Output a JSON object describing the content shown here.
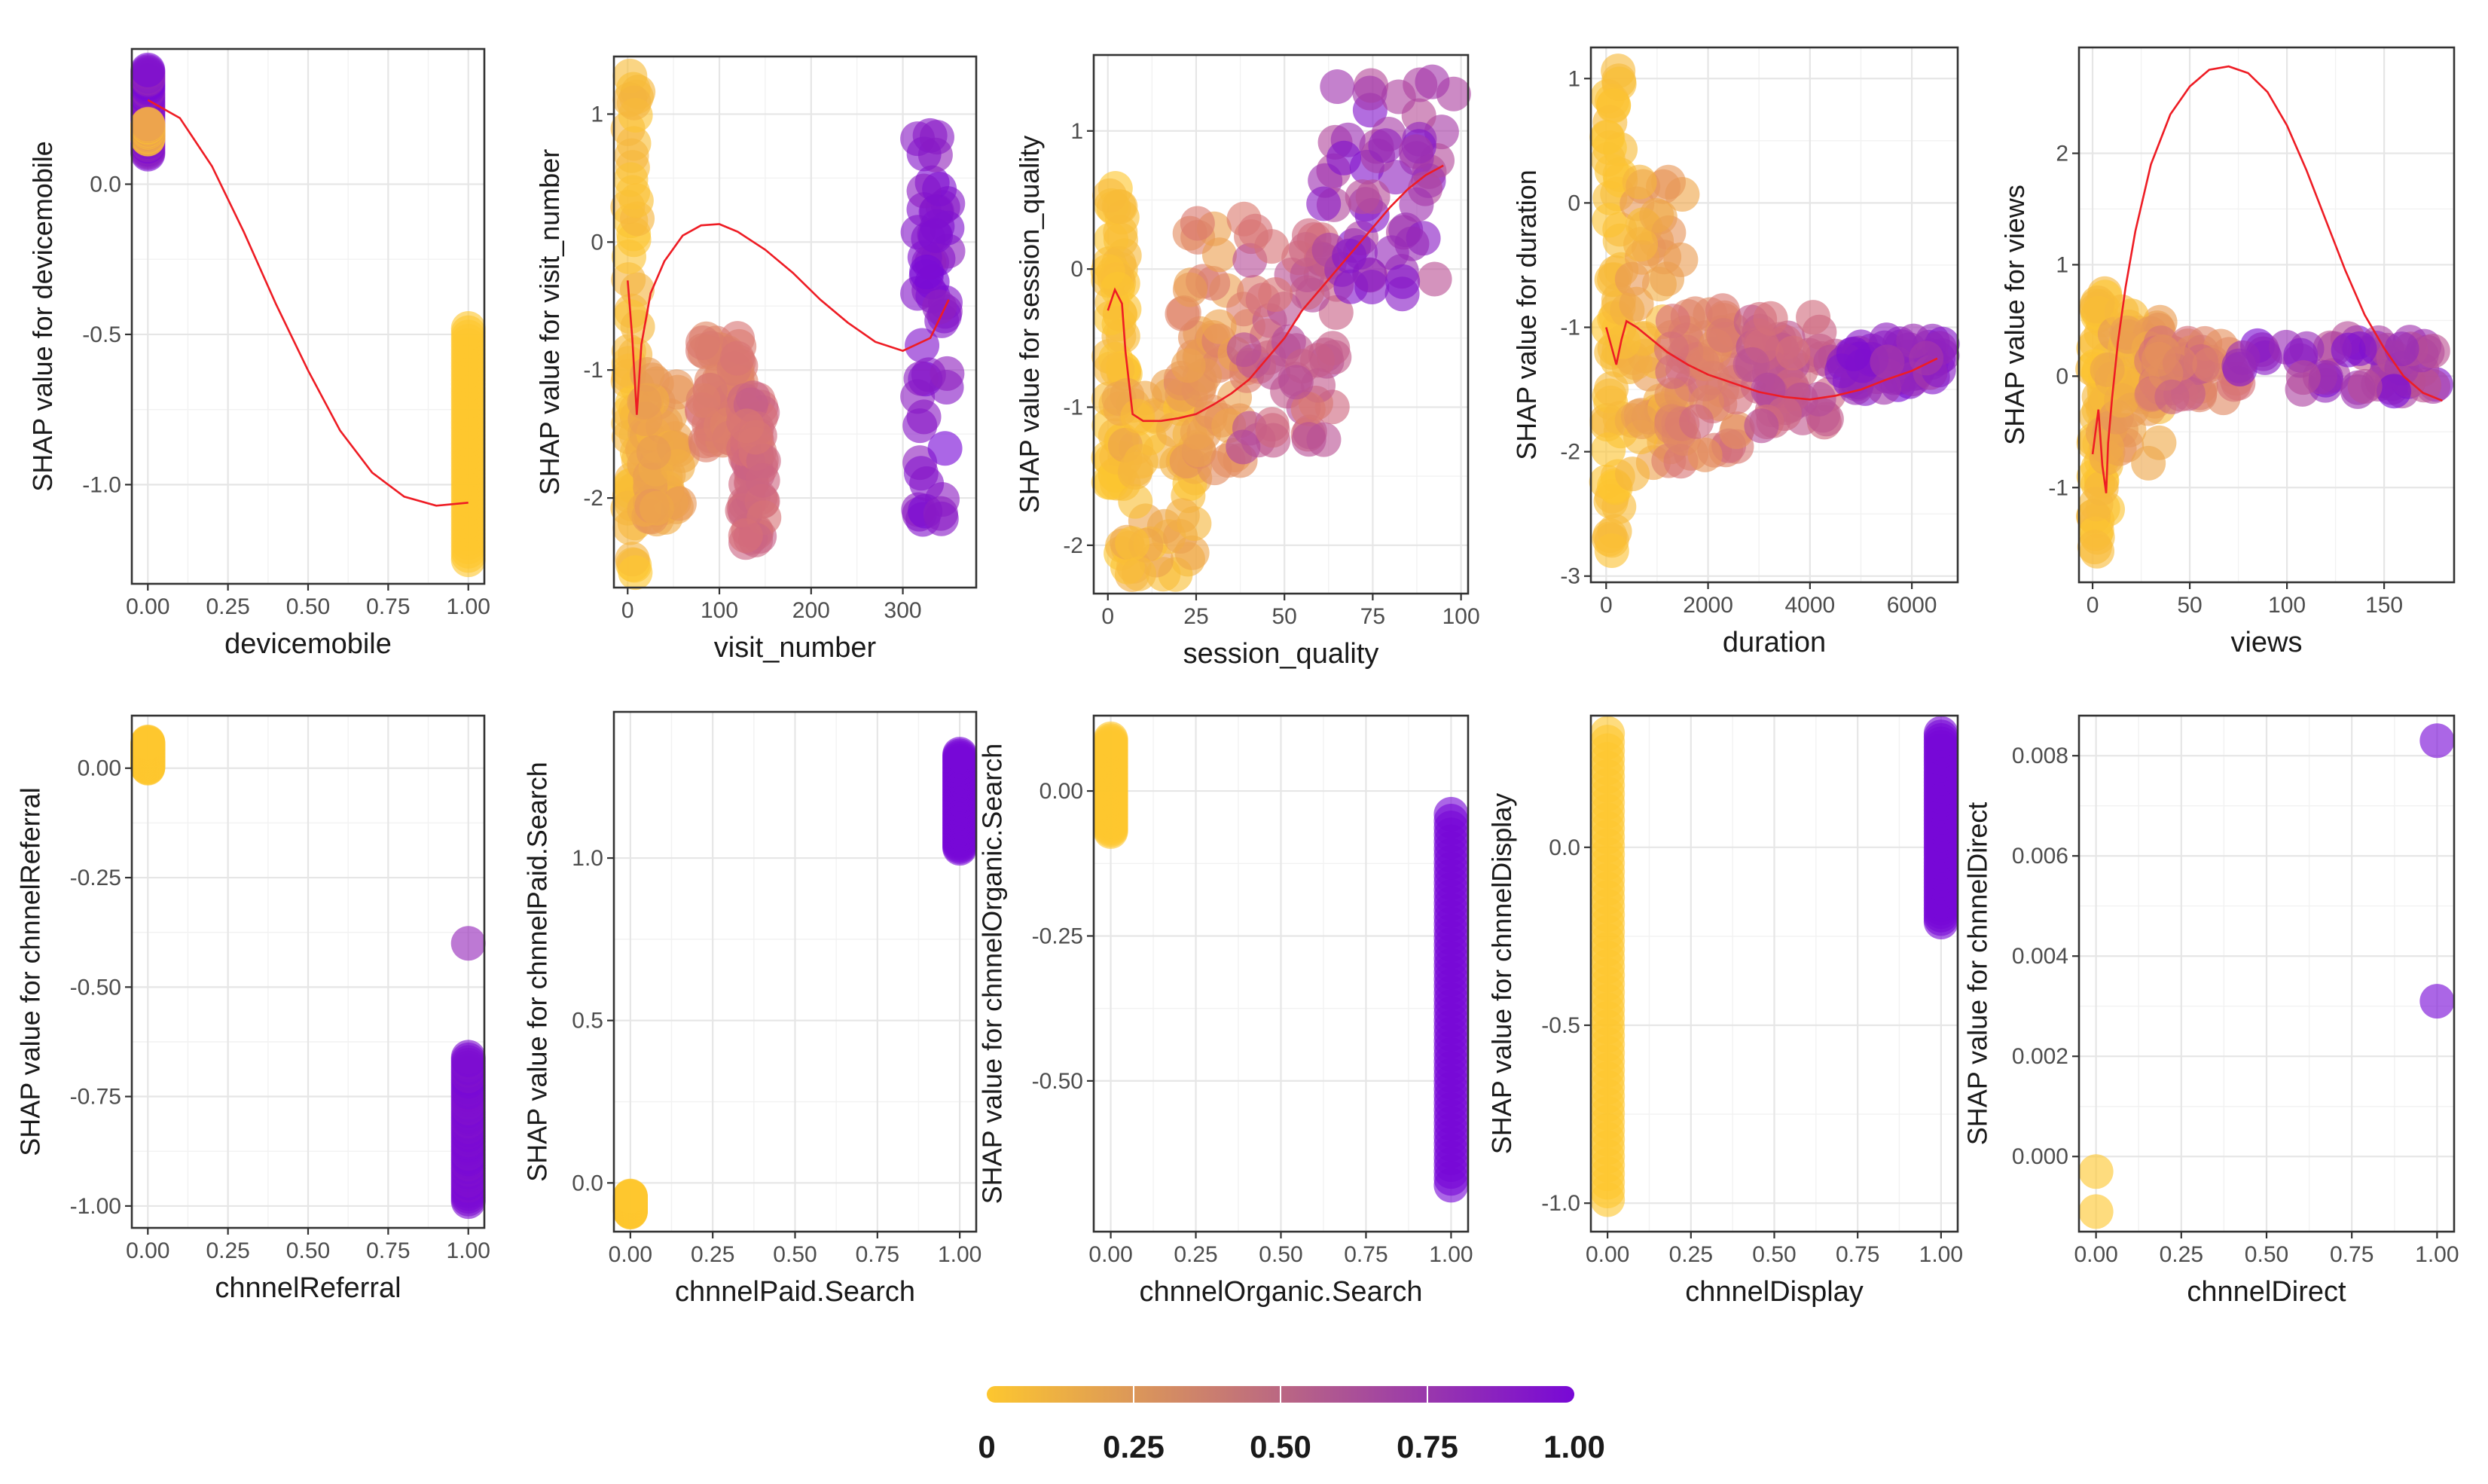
{
  "chart_data": [
    {
      "type": "scatter",
      "id": "devicemobile",
      "xlabel": "devicemobile",
      "ylabel": "SHAP value for devicemobile",
      "xlim": [
        -0.05,
        1.05
      ],
      "ylim": [
        -1.33,
        0.45
      ],
      "xticks": [
        0,
        0.25,
        0.5,
        0.75,
        1
      ],
      "xticklabels": [
        "0.00",
        "0.25",
        "0.50",
        "0.75",
        "1.00"
      ],
      "yticks": [
        -1,
        -0.5,
        0
      ],
      "yticklabels": [
        "-1.0",
        "-0.5",
        "0.0"
      ],
      "point_groups": [
        {
          "x": [
            0,
            0
          ],
          "y": [
            0.1,
            0.38
          ],
          "c": [
            0.85,
            1.0
          ]
        },
        {
          "x": [
            0,
            0
          ],
          "y": [
            0.15,
            0.2
          ],
          "c": [
            0.0,
            0.3
          ]
        },
        {
          "x": [
            1,
            1
          ],
          "y": [
            -1.25,
            -0.48
          ],
          "c": [
            0.0,
            0.0
          ]
        }
      ],
      "trend": {
        "x": [
          0,
          0.1,
          0.2,
          0.3,
          0.4,
          0.5,
          0.6,
          0.7,
          0.8,
          0.9,
          1.0
        ],
        "y": [
          0.28,
          0.22,
          0.06,
          -0.16,
          -0.4,
          -0.62,
          -0.82,
          -0.96,
          -1.04,
          -1.07,
          -1.06
        ]
      }
    },
    {
      "type": "scatter",
      "id": "visit_number",
      "xlabel": "visit_number",
      "ylabel": "SHAP value for visit_number",
      "xlim": [
        -15,
        380
      ],
      "ylim": [
        -2.7,
        1.45
      ],
      "xticks": [
        0,
        100,
        200,
        300
      ],
      "xticklabels": [
        "0",
        "100",
        "200",
        "300"
      ],
      "yticks": [
        -2,
        -1,
        0,
        1
      ],
      "yticklabels": [
        "-2",
        "-1",
        "0",
        "1"
      ],
      "point_groups": [
        {
          "x": [
            0,
            12
          ],
          "y": [
            -2.6,
            1.3
          ],
          "c": [
            0.0,
            0.12
          ]
        },
        {
          "x": [
            15,
            60
          ],
          "y": [
            -2.2,
            -1.0
          ],
          "c": [
            0.1,
            0.3
          ]
        },
        {
          "x": [
            80,
            125
          ],
          "y": [
            -1.6,
            -0.75
          ],
          "c": [
            0.35,
            0.5
          ]
        },
        {
          "x": [
            125,
            150
          ],
          "y": [
            -2.35,
            -1.2
          ],
          "c": [
            0.45,
            0.6
          ]
        },
        {
          "x": [
            315,
            350
          ],
          "y": [
            -2.2,
            0.85
          ],
          "c": [
            0.85,
            1.0
          ]
        }
      ],
      "trend": {
        "x": [
          0,
          5,
          10,
          15,
          25,
          40,
          60,
          80,
          100,
          120,
          150,
          180,
          210,
          240,
          270,
          300,
          330,
          350
        ],
        "y": [
          -0.3,
          -0.75,
          -1.35,
          -0.8,
          -0.4,
          -0.15,
          0.05,
          0.13,
          0.14,
          0.08,
          -0.06,
          -0.24,
          -0.45,
          -0.63,
          -0.78,
          -0.85,
          -0.75,
          -0.45
        ]
      }
    },
    {
      "type": "scatter",
      "id": "session_quality",
      "xlabel": "session_quality",
      "ylabel": "SHAP value for session_quality",
      "xlim": [
        -4,
        102
      ],
      "ylim": [
        -2.35,
        1.55
      ],
      "xticks": [
        0,
        25,
        50,
        75,
        100
      ],
      "xticklabels": [
        "0",
        "25",
        "50",
        "75",
        "100"
      ],
      "yticks": [
        -2,
        -1,
        0,
        1
      ],
      "yticklabels": [
        "-2",
        "-1",
        "0",
        "1"
      ],
      "point_groups": [
        {
          "x": [
            0,
            5
          ],
          "y": [
            -1.6,
            0.6
          ],
          "c": [
            0.0,
            0.1
          ]
        },
        {
          "x": [
            3,
            25
          ],
          "y": [
            -2.25,
            -0.85
          ],
          "c": [
            0.0,
            0.22
          ]
        },
        {
          "x": [
            20,
            42
          ],
          "y": [
            -1.45,
            0.4
          ],
          "c": [
            0.2,
            0.45
          ]
        },
        {
          "x": [
            38,
            65
          ],
          "y": [
            -1.3,
            0.3
          ],
          "c": [
            0.45,
            0.7
          ]
        },
        {
          "x": [
            60,
            98
          ],
          "y": [
            -0.2,
            1.4
          ],
          "c": [
            0.65,
            0.95
          ]
        }
      ],
      "trend": {
        "x": [
          0,
          2,
          4,
          5,
          7,
          10,
          15,
          20,
          25,
          30,
          35,
          40,
          45,
          50,
          55,
          60,
          65,
          70,
          75,
          80,
          85,
          90,
          95
        ],
        "y": [
          -0.3,
          -0.15,
          -0.25,
          -0.6,
          -1.05,
          -1.1,
          -1.1,
          -1.08,
          -1.05,
          -0.98,
          -0.9,
          -0.8,
          -0.65,
          -0.5,
          -0.3,
          -0.15,
          0.0,
          0.15,
          0.3,
          0.45,
          0.58,
          0.68,
          0.75
        ]
      }
    },
    {
      "type": "scatter",
      "id": "duration",
      "xlabel": "duration",
      "ylabel": "SHAP value for duration",
      "xlim": [
        -300,
        6900
      ],
      "ylim": [
        -3.05,
        1.25
      ],
      "xticks": [
        0,
        2000,
        4000,
        6000
      ],
      "xticklabels": [
        "0",
        "2000",
        "4000",
        "6000"
      ],
      "yticks": [
        -3,
        -2,
        -1,
        0,
        1
      ],
      "yticklabels": [
        "-3",
        "-2",
        "-1",
        "0",
        "1"
      ],
      "point_groups": [
        {
          "x": [
            0,
            300
          ],
          "y": [
            -2.9,
            1.1
          ],
          "c": [
            0.0,
            0.1
          ]
        },
        {
          "x": [
            300,
            1500
          ],
          "y": [
            -2.2,
            0.2
          ],
          "c": [
            0.05,
            0.3
          ]
        },
        {
          "x": [
            1200,
            2600
          ],
          "y": [
            -2.1,
            -0.8
          ],
          "c": [
            0.3,
            0.55
          ]
        },
        {
          "x": [
            2800,
            4500
          ],
          "y": [
            -1.8,
            -0.9
          ],
          "c": [
            0.5,
            0.7
          ]
        },
        {
          "x": [
            4500,
            6600
          ],
          "y": [
            -1.5,
            -1.1
          ],
          "c": [
            0.75,
            1.0
          ]
        }
      ],
      "trend": {
        "x": [
          0,
          100,
          200,
          300,
          400,
          600,
          900,
          1200,
          1600,
          2000,
          2500,
          3000,
          3500,
          4000,
          4500,
          5000,
          5500,
          6000,
          6500
        ],
        "y": [
          -1.0,
          -1.15,
          -1.3,
          -1.1,
          -0.95,
          -1.0,
          -1.1,
          -1.2,
          -1.3,
          -1.38,
          -1.45,
          -1.52,
          -1.56,
          -1.58,
          -1.55,
          -1.5,
          -1.42,
          -1.35,
          -1.25
        ]
      }
    },
    {
      "type": "scatter",
      "id": "views",
      "xlabel": "views",
      "ylabel": "SHAP value for views",
      "xlim": [
        -7,
        186
      ],
      "ylim": [
        -1.85,
        2.95
      ],
      "xticks": [
        0,
        50,
        100,
        150
      ],
      "xticklabels": [
        "0",
        "50",
        "100",
        "150"
      ],
      "yticks": [
        -1,
        0,
        1,
        2
      ],
      "yticklabels": [
        "-1",
        "0",
        "1",
        "2"
      ],
      "point_groups": [
        {
          "x": [
            0,
            8
          ],
          "y": [
            -1.6,
            0.9
          ],
          "c": [
            0.0,
            0.1
          ]
        },
        {
          "x": [
            5,
            35
          ],
          "y": [
            -0.8,
            0.6
          ],
          "c": [
            0.05,
            0.3
          ]
        },
        {
          "x": [
            30,
            75
          ],
          "y": [
            -0.2,
            0.3
          ],
          "c": [
            0.3,
            0.6
          ]
        },
        {
          "x": [
            75,
            180
          ],
          "y": [
            -0.15,
            0.35
          ],
          "c": [
            0.6,
            1.0
          ]
        }
      ],
      "trend": {
        "x": [
          0,
          3,
          5,
          7,
          8,
          10,
          13,
          17,
          22,
          30,
          40,
          50,
          60,
          70,
          80,
          90,
          100,
          110,
          120,
          130,
          140,
          150,
          160,
          170,
          180
        ],
        "y": [
          -0.7,
          -0.3,
          -0.8,
          -1.05,
          -0.6,
          -0.2,
          0.3,
          0.8,
          1.3,
          1.9,
          2.35,
          2.6,
          2.75,
          2.78,
          2.72,
          2.55,
          2.25,
          1.85,
          1.4,
          0.95,
          0.55,
          0.25,
          0.0,
          -0.15,
          -0.22
        ]
      }
    },
    {
      "type": "scatter",
      "id": "chnnelReferral",
      "xlabel": "chnnelReferral",
      "ylabel": "SHAP value for chnnelReferral",
      "xlim": [
        -0.05,
        1.05
      ],
      "ylim": [
        -1.05,
        0.12
      ],
      "xticks": [
        0,
        0.25,
        0.5,
        0.75,
        1
      ],
      "xticklabels": [
        "0.00",
        "0.25",
        "0.50",
        "0.75",
        "1.00"
      ],
      "yticks": [
        -1,
        -0.75,
        -0.5,
        -0.25,
        0
      ],
      "yticklabels": [
        "-1.00",
        "-0.75",
        "-0.50",
        "-0.25",
        "0.00"
      ],
      "point_groups": [
        {
          "x": [
            0,
            0
          ],
          "y": [
            0.0,
            0.06
          ],
          "c": [
            0.0,
            0.0
          ]
        },
        {
          "x": [
            1,
            1
          ],
          "y": [
            -0.4,
            -0.4
          ],
          "c": [
            0.85,
            0.85
          ]
        },
        {
          "x": [
            1,
            1
          ],
          "y": [
            -0.99,
            -0.66
          ],
          "c": [
            0.95,
            1.0
          ]
        }
      ]
    },
    {
      "type": "scatter",
      "id": "chnnelPaid.Search",
      "xlabel": "chnnelPaid.Search",
      "ylabel": "SHAP value for chnnelPaid.Search",
      "xlim": [
        -0.05,
        1.05
      ],
      "ylim": [
        -0.15,
        1.45
      ],
      "xticks": [
        0,
        0.25,
        0.5,
        0.75,
        1
      ],
      "xticklabels": [
        "0.00",
        "0.25",
        "0.50",
        "0.75",
        "1.00"
      ],
      "yticks": [
        0,
        0.5,
        1
      ],
      "yticklabels": [
        "0.0",
        "0.5",
        "1.0"
      ],
      "point_groups": [
        {
          "x": [
            0,
            0
          ],
          "y": [
            -0.09,
            -0.04
          ],
          "c": [
            0.0,
            0.0
          ]
        },
        {
          "x": [
            1,
            1
          ],
          "y": [
            1.03,
            1.32
          ],
          "c": [
            1.0,
            1.0
          ]
        }
      ]
    },
    {
      "type": "scatter",
      "id": "chnnelOrganic.Search",
      "xlabel": "chnnelOrganic.Search",
      "ylabel": "SHAP value for chnnelOrganic.Search",
      "xlim": [
        -0.05,
        1.05
      ],
      "ylim": [
        -0.76,
        0.13
      ],
      "xticks": [
        0,
        0.25,
        0.5,
        0.75,
        1
      ],
      "xticklabels": [
        "0.00",
        "0.25",
        "0.50",
        "0.75",
        "1.00"
      ],
      "yticks": [
        -0.5,
        -0.25,
        0
      ],
      "yticklabels": [
        "-0.50",
        "-0.25",
        "0.00"
      ],
      "point_groups": [
        {
          "x": [
            0,
            0
          ],
          "y": [
            -0.07,
            0.09
          ],
          "c": [
            0.0,
            0.0
          ]
        },
        {
          "x": [
            1,
            1
          ],
          "y": [
            -0.68,
            -0.04
          ],
          "c": [
            1.0,
            1.0
          ]
        }
      ]
    },
    {
      "type": "scatter",
      "id": "chnnelDisplay",
      "xlabel": "chnnelDisplay",
      "ylabel": "SHAP value for chnnelDisplay",
      "xlim": [
        -0.05,
        1.05
      ],
      "ylim": [
        -1.08,
        0.37
      ],
      "xticks": [
        0,
        0.25,
        0.5,
        0.75,
        1
      ],
      "xticklabels": [
        "0.00",
        "0.25",
        "0.50",
        "0.75",
        "1.00"
      ],
      "yticks": [
        -1,
        -0.5,
        0
      ],
      "yticklabels": [
        "-1.0",
        "-0.5",
        "0.0"
      ],
      "point_groups": [
        {
          "x": [
            0,
            0
          ],
          "y": [
            -0.99,
            0.32
          ],
          "c": [
            0.0,
            0.0
          ]
        },
        {
          "x": [
            1,
            1
          ],
          "y": [
            -0.21,
            0.32
          ],
          "c": [
            1.0,
            1.0
          ]
        }
      ]
    },
    {
      "type": "scatter",
      "id": "chnnelDirect",
      "xlabel": "chnnelDirect",
      "ylabel": "SHAP value for chnnelDirect",
      "xlim": [
        -0.05,
        1.05
      ],
      "ylim": [
        -0.0015,
        0.0088
      ],
      "xticks": [
        0,
        0.25,
        0.5,
        0.75,
        1
      ],
      "xticklabels": [
        "0.00",
        "0.25",
        "0.50",
        "0.75",
        "1.00"
      ],
      "yticks": [
        0,
        0.002,
        0.004,
        0.006,
        0.008
      ],
      "yticklabels": [
        "0.000",
        "0.002",
        "0.004",
        "0.006",
        "0.008"
      ],
      "point_groups": [
        {
          "x": [
            0,
            0
          ],
          "y": [
            -0.0011,
            -0.0011
          ],
          "c": [
            0.0,
            0.0
          ]
        },
        {
          "x": [
            0,
            0
          ],
          "y": [
            -0.0003,
            -0.0003
          ],
          "c": [
            0.0,
            0.0
          ]
        },
        {
          "x": [
            1,
            1
          ],
          "y": [
            0.0031,
            0.0031
          ],
          "c": [
            1.0,
            1.0
          ]
        },
        {
          "x": [
            1,
            1
          ],
          "y": [
            0.0083,
            0.0083
          ],
          "c": [
            1.0,
            1.0
          ]
        }
      ]
    }
  ],
  "colorbar": {
    "range": [
      0,
      1
    ],
    "ticks": [
      0,
      0.25,
      0.5,
      0.75,
      1
    ],
    "ticklabels": [
      "0",
      "0.25",
      "0.50",
      "0.75",
      "1.00"
    ],
    "colors": [
      "#FDC72F",
      "#7808D6"
    ]
  },
  "colors": {
    "trend_line": "#EE1C24",
    "low": "#FDC72F",
    "high": "#7808D6",
    "grid": "#E6E6E6",
    "frame": "#333333"
  }
}
